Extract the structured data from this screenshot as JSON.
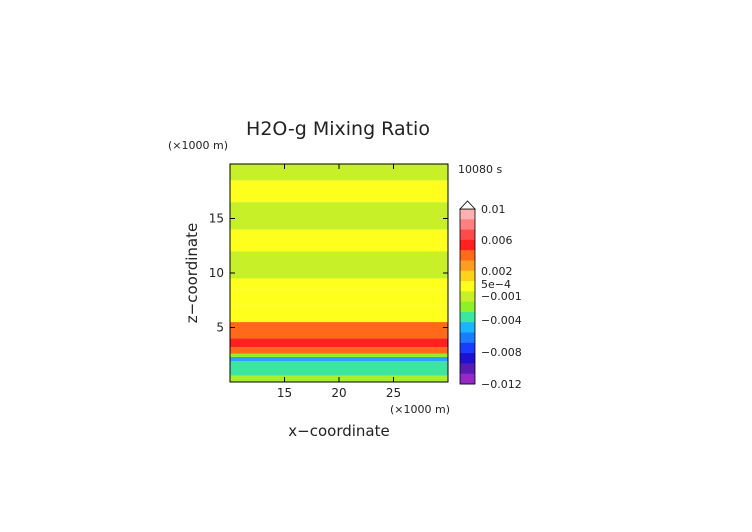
{
  "chart_data": {
    "type": "heatmap",
    "title": "H2O-g Mixing Ratio",
    "time_label": "10080 s",
    "xlabel": "x−coordinate",
    "ylabel": "z−coordinate",
    "x_unit": "(×1000 m)",
    "y_unit": "(×1000 m)",
    "xlim": [
      10,
      30
    ],
    "ylim": [
      0,
      20
    ],
    "x_ticks": [
      "15",
      "20",
      "25"
    ],
    "y_ticks": [
      "5",
      "10",
      "15"
    ],
    "colorbar": {
      "labels": [
        "0.01",
        "0.006",
        "0.002",
        "5e−4",
        "−0.001",
        "−0.004",
        "−0.008",
        "−0.012"
      ],
      "colors": [
        "#ffb0b0",
        "#ff8080",
        "#ff4a4a",
        "#ff2020",
        "#ff6a1a",
        "#ff9d20",
        "#ffd21e",
        "#ffff1e",
        "#c8f028",
        "#8ef028",
        "#3ce6a0",
        "#1ab4ff",
        "#1a7cff",
        "#1a3cff",
        "#2010d0",
        "#5a1ab4",
        "#9628c8"
      ]
    },
    "field_bands": [
      {
        "z": [
          0,
          0.6
        ],
        "color": "#aaf028"
      },
      {
        "z": [
          0.6,
          1.9
        ],
        "color": "#3ce6a0"
      },
      {
        "z": [
          1.9,
          2.3
        ],
        "color": "#2aa0ff"
      },
      {
        "z": [
          2.3,
          2.6
        ],
        "color": "#8ef028"
      },
      {
        "z": [
          2.6,
          3.2
        ],
        "color": "#ff6a1a"
      },
      {
        "z": [
          3.2,
          4.0
        ],
        "color": "#ff2020"
      },
      {
        "z": [
          4.0,
          5.5
        ],
        "color": "#ff6a1a"
      },
      {
        "z": [
          5.5,
          7.0
        ],
        "color": "#ffff1e"
      },
      {
        "z": [
          7.0,
          8.5
        ],
        "color": "#ffff1e"
      },
      {
        "z": [
          8.5,
          9.5
        ],
        "color": "#ffff1e"
      },
      {
        "z": [
          9.5,
          12.0
        ],
        "color": "#c8f028"
      },
      {
        "z": [
          12.0,
          14.0
        ],
        "color": "#ffff1e"
      },
      {
        "z": [
          14.0,
          16.5
        ],
        "color": "#c8f028"
      },
      {
        "z": [
          16.5,
          18.5
        ],
        "color": "#ffff1e"
      },
      {
        "z": [
          18.5,
          20.0
        ],
        "color": "#c8f028"
      }
    ]
  }
}
